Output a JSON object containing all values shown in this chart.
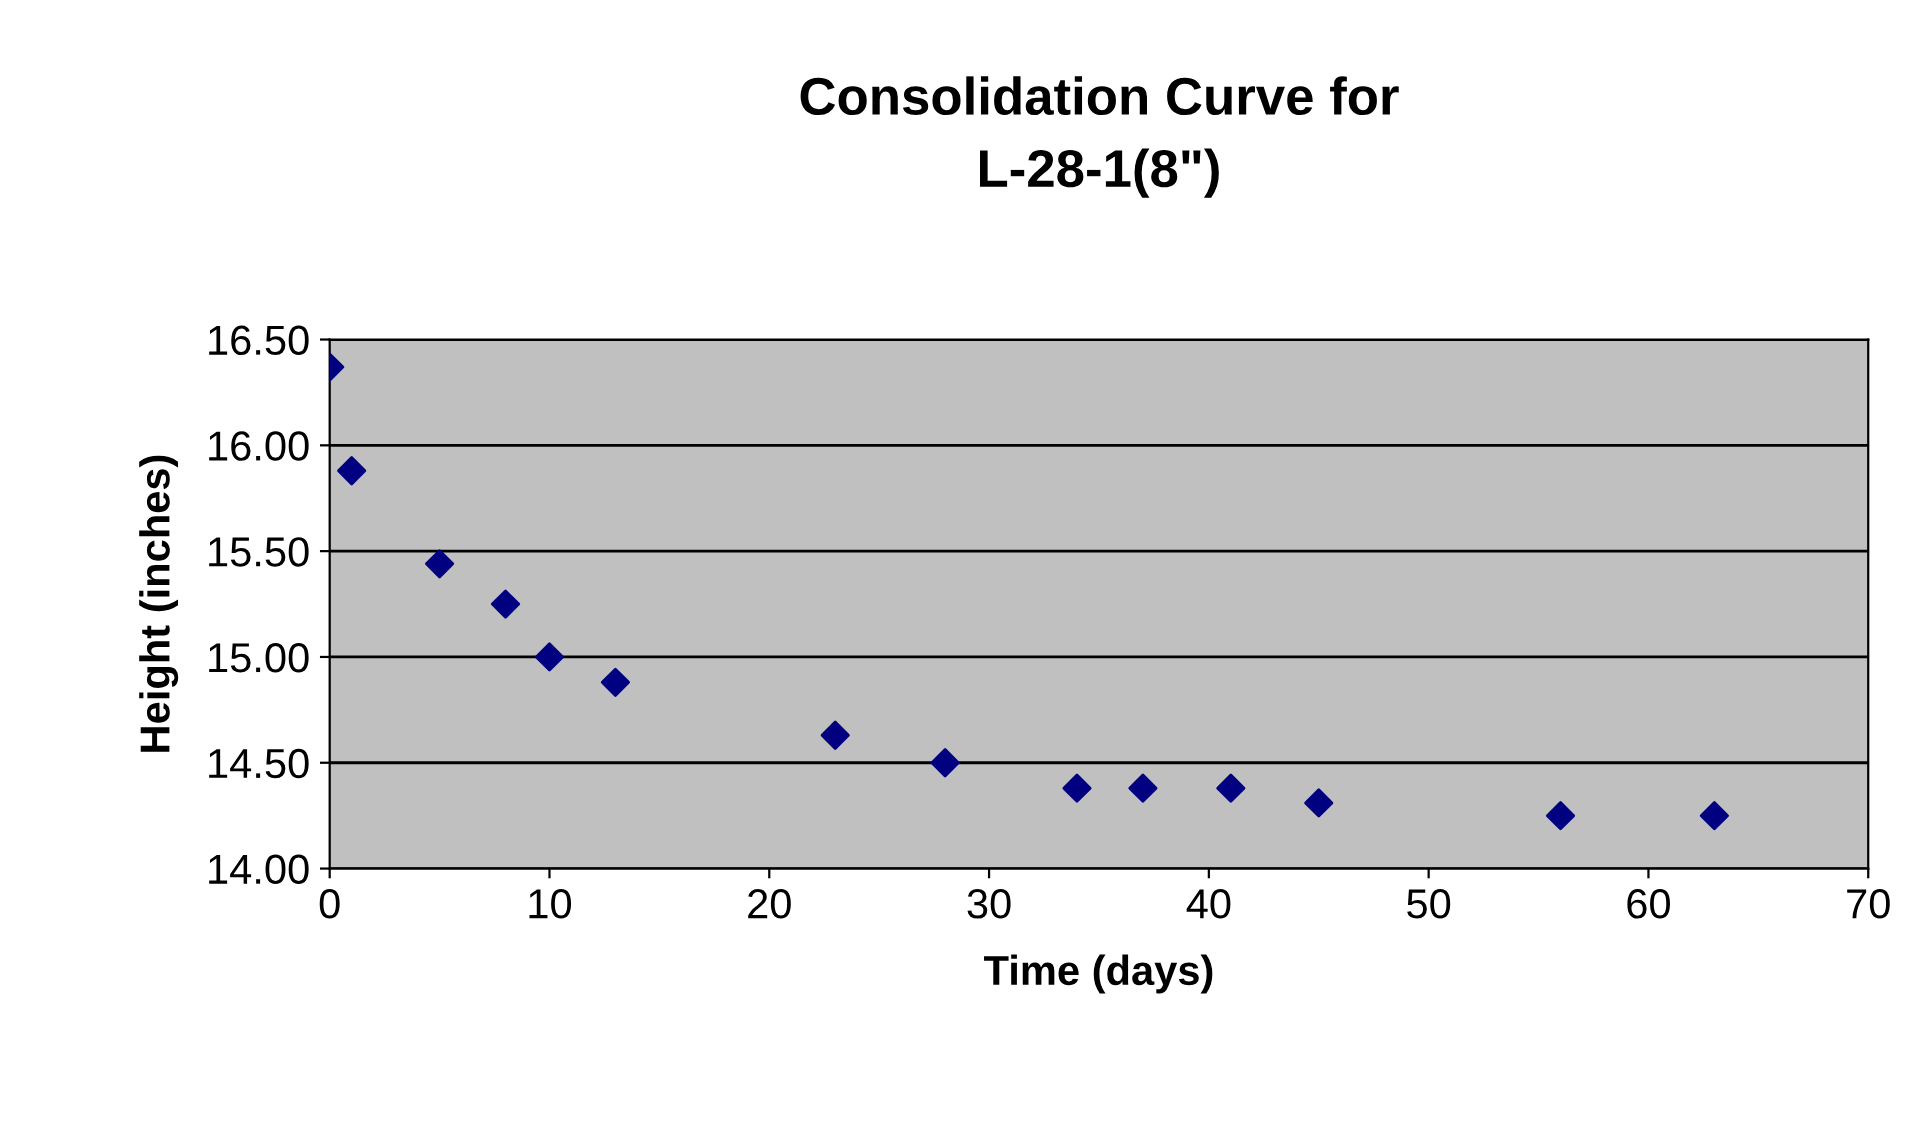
{
  "chart_data": {
    "type": "scatter",
    "title": "Consolidation Curve for\nL-28-1(8\")",
    "xlabel": "Time (days)",
    "ylabel": "Height (inches)",
    "x": [
      0,
      1,
      5,
      8,
      10,
      13,
      23,
      28,
      34,
      37,
      41,
      45,
      56,
      63
    ],
    "series": [
      {
        "color": "#000080",
        "values": [
          16.37,
          15.88,
          15.44,
          15.25,
          15.0,
          14.88,
          14.63,
          14.5,
          14.38,
          14.38,
          14.38,
          14.31,
          14.25,
          14.25
        ]
      }
    ],
    "xlim": [
      0,
      70
    ],
    "xticks": [
      0,
      10,
      20,
      30,
      40,
      50,
      60,
      70
    ],
    "ylim": [
      14.0,
      16.5
    ],
    "yticks": [
      {
        "value": 14.0,
        "label": "14.00"
      },
      {
        "value": 14.5,
        "label": "14.50"
      },
      {
        "value": 15.0,
        "label": "15.00"
      },
      {
        "value": 15.5,
        "label": "15.50"
      },
      {
        "value": 16.0,
        "label": "16.00"
      },
      {
        "value": 16.5,
        "label": "16.50"
      }
    ],
    "grid": "y",
    "marker": "diamond"
  }
}
